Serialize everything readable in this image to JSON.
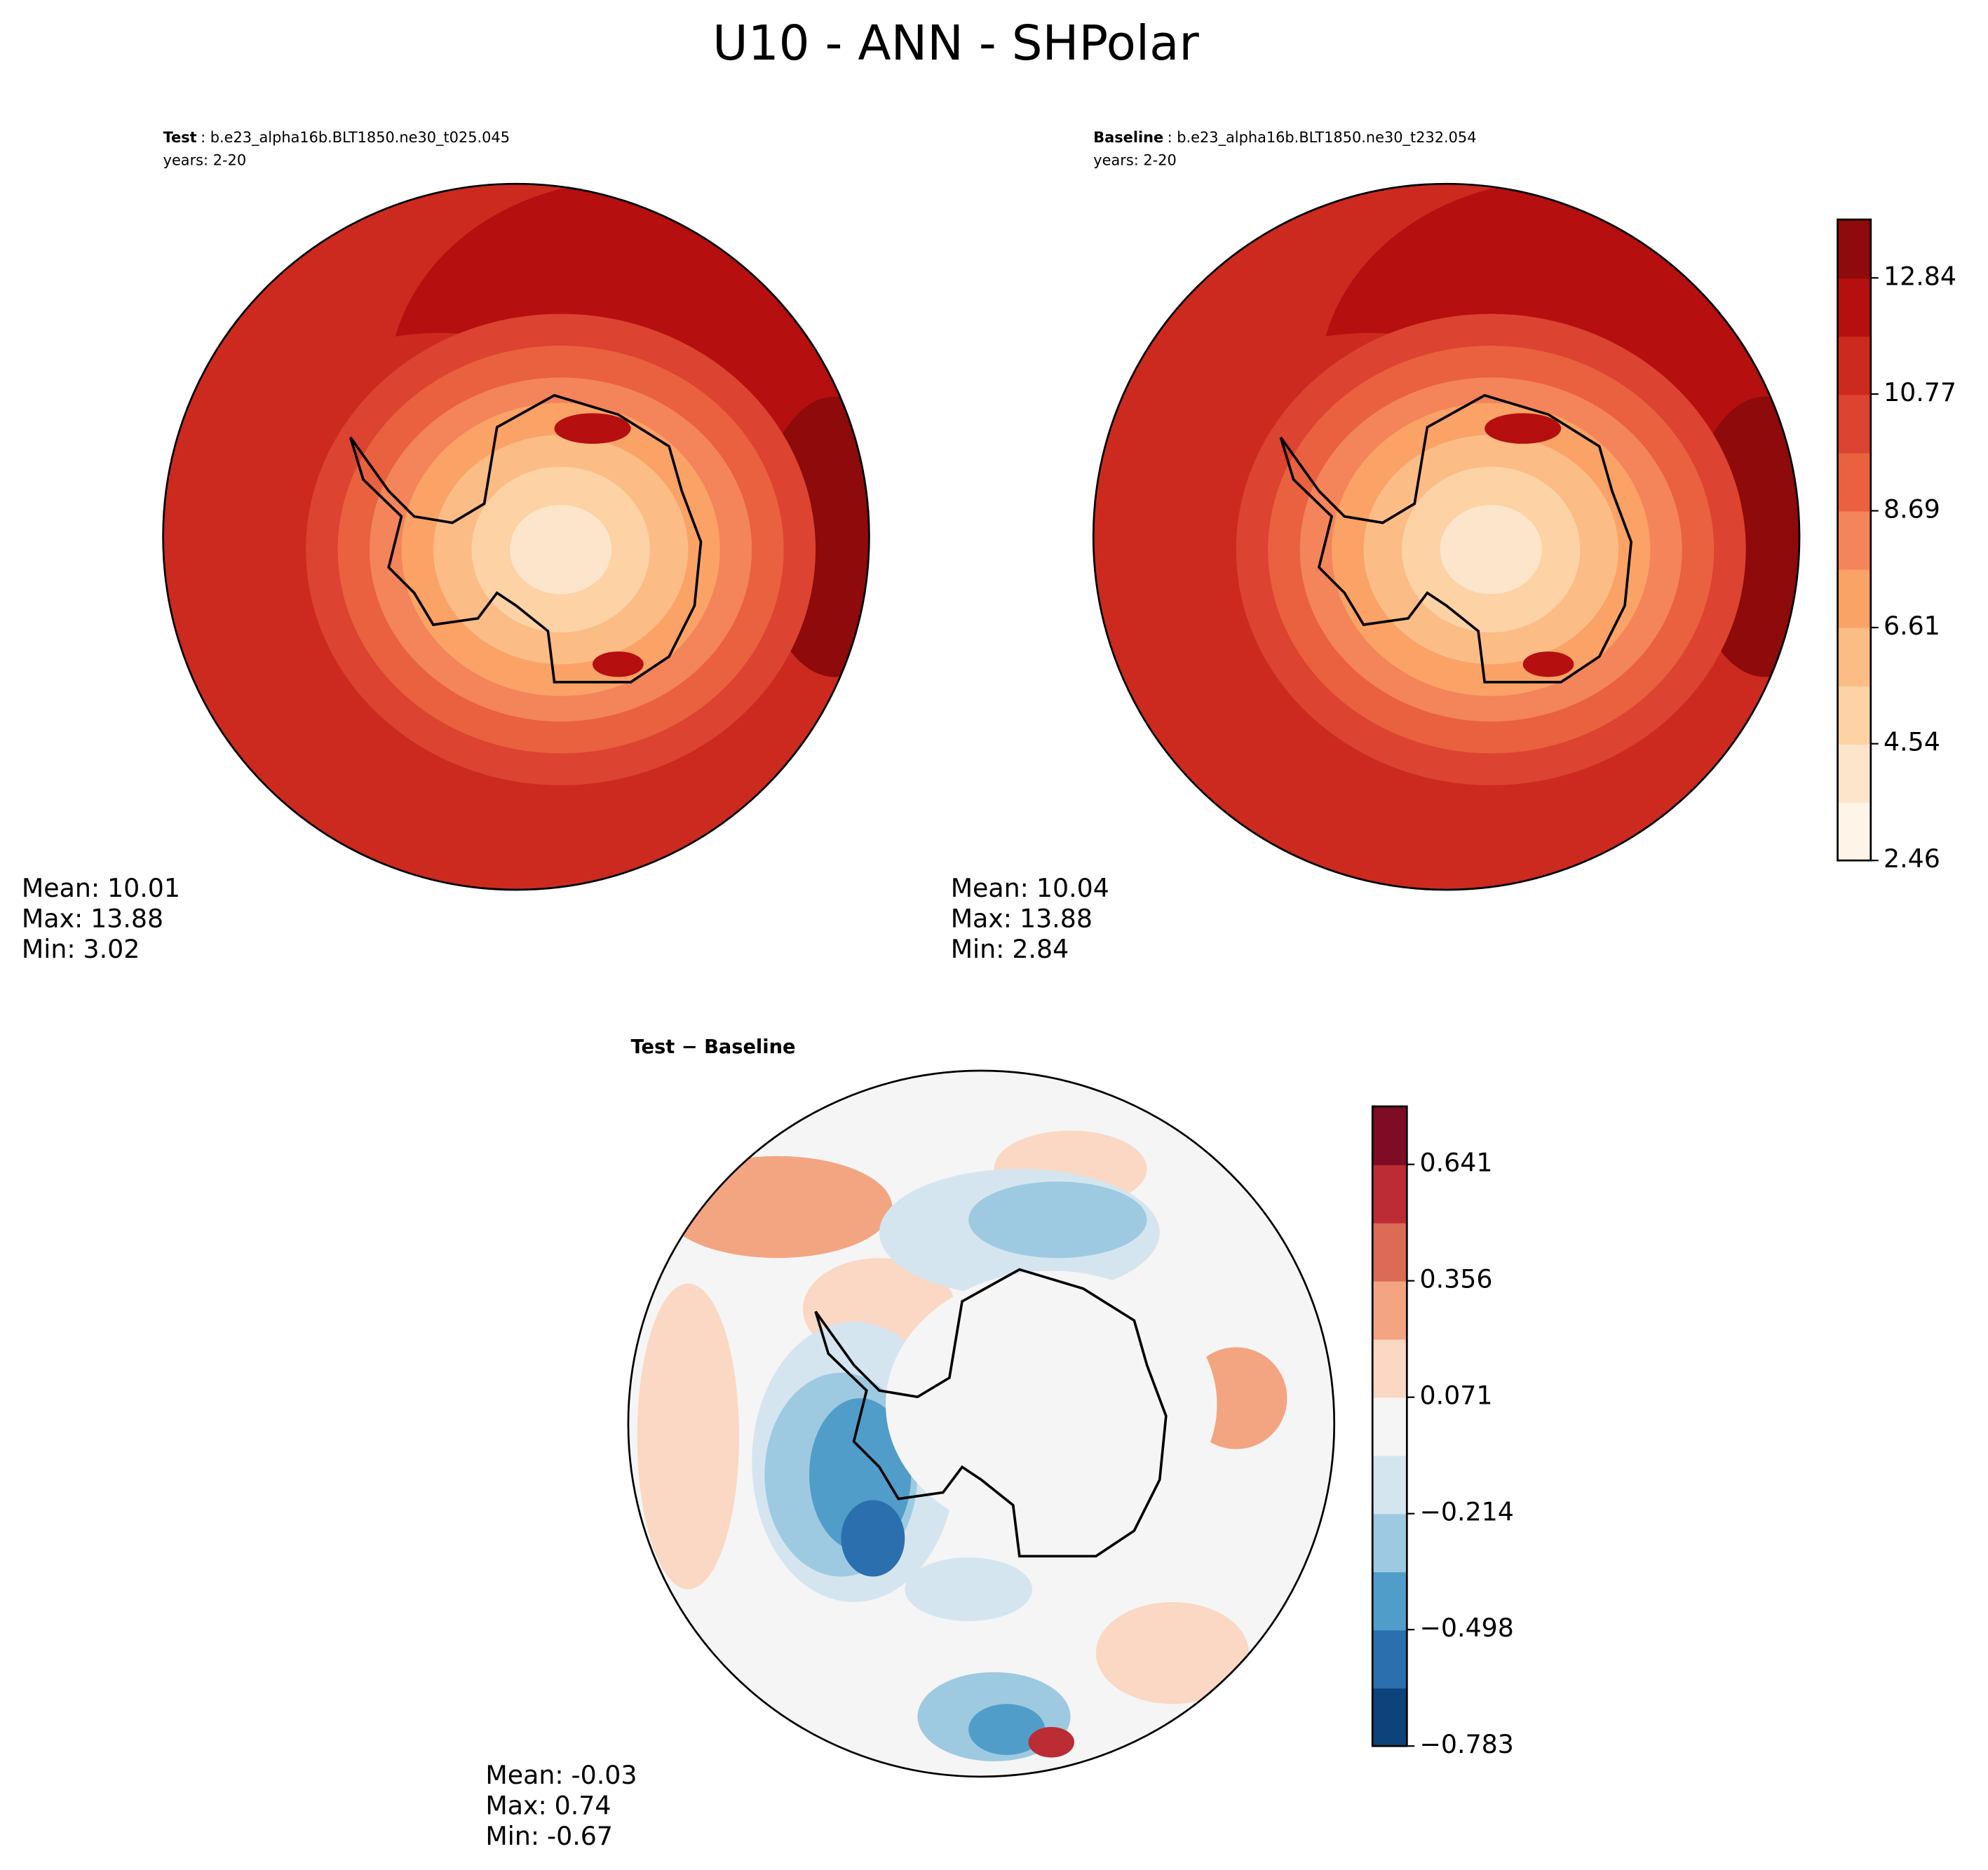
{
  "title": "U10 - ANN - SHPolar",
  "chart_data": [
    {
      "type": "map",
      "label": "Test",
      "case": ": b.e23_alpha16b.BLT1850.ne30_t025.045",
      "years": "years: 2-20",
      "stats": [
        {
          "label": "Mean:",
          "value": 10.01
        },
        {
          "label": "Max:",
          "value": 13.88
        },
        {
          "label": "Min:",
          "value": 3.02
        }
      ],
      "colors": [
        "#fef4e8",
        "#fde5cb",
        "#fdd2a4",
        "#fcbc86",
        "#fba266",
        "#f4845a",
        "#e9613f",
        "#dc4330",
        "#cc2a1f",
        "#b50f10",
        "#8f0a0a"
      ]
    },
    {
      "type": "map",
      "label": "Baseline",
      "case": ": b.e23_alpha16b.BLT1850.ne30_t232.054",
      "years": "years: 2-20",
      "stats": [
        {
          "label": "Mean:",
          "value": 10.04
        },
        {
          "label": "Max:",
          "value": 13.88
        },
        {
          "label": "Min:",
          "value": 2.84
        }
      ],
      "colors": [
        "#fef4e8",
        "#fde5cb",
        "#fdd2a4",
        "#fcbc86",
        "#fba266",
        "#f4845a",
        "#e9613f",
        "#dc4330",
        "#cc2a1f",
        "#b50f10",
        "#8f0a0a"
      ],
      "ylim": [
        2.46,
        13.88
      ],
      "yticks": [
        2.46,
        4.54,
        6.61,
        8.69,
        10.77,
        12.84
      ]
    },
    {
      "type": "diff-map",
      "title": "Test − Baseline",
      "stats": [
        {
          "label": "Mean:",
          "value": -0.03
        },
        {
          "label": "Max:",
          "value": 0.74
        },
        {
          "label": "Min:",
          "value": -0.67
        }
      ],
      "colors": [
        "#0c437b",
        "#2b6fae",
        "#519dc9",
        "#9ecae1",
        "#d5e5f0",
        "#f5f5f5",
        "#fbd8c4",
        "#f3a582",
        "#db6b55",
        "#bc2c34",
        "#7e0c24"
      ],
      "ylim": [
        -0.783,
        0.783
      ],
      "yticks": [
        {
          "value": -0.783,
          "label": "−0.783"
        },
        {
          "value": -0.498,
          "label": "−0.498"
        },
        {
          "value": -0.214,
          "label": "−0.214"
        },
        0.071,
        0.356,
        0.641
      ]
    }
  ]
}
